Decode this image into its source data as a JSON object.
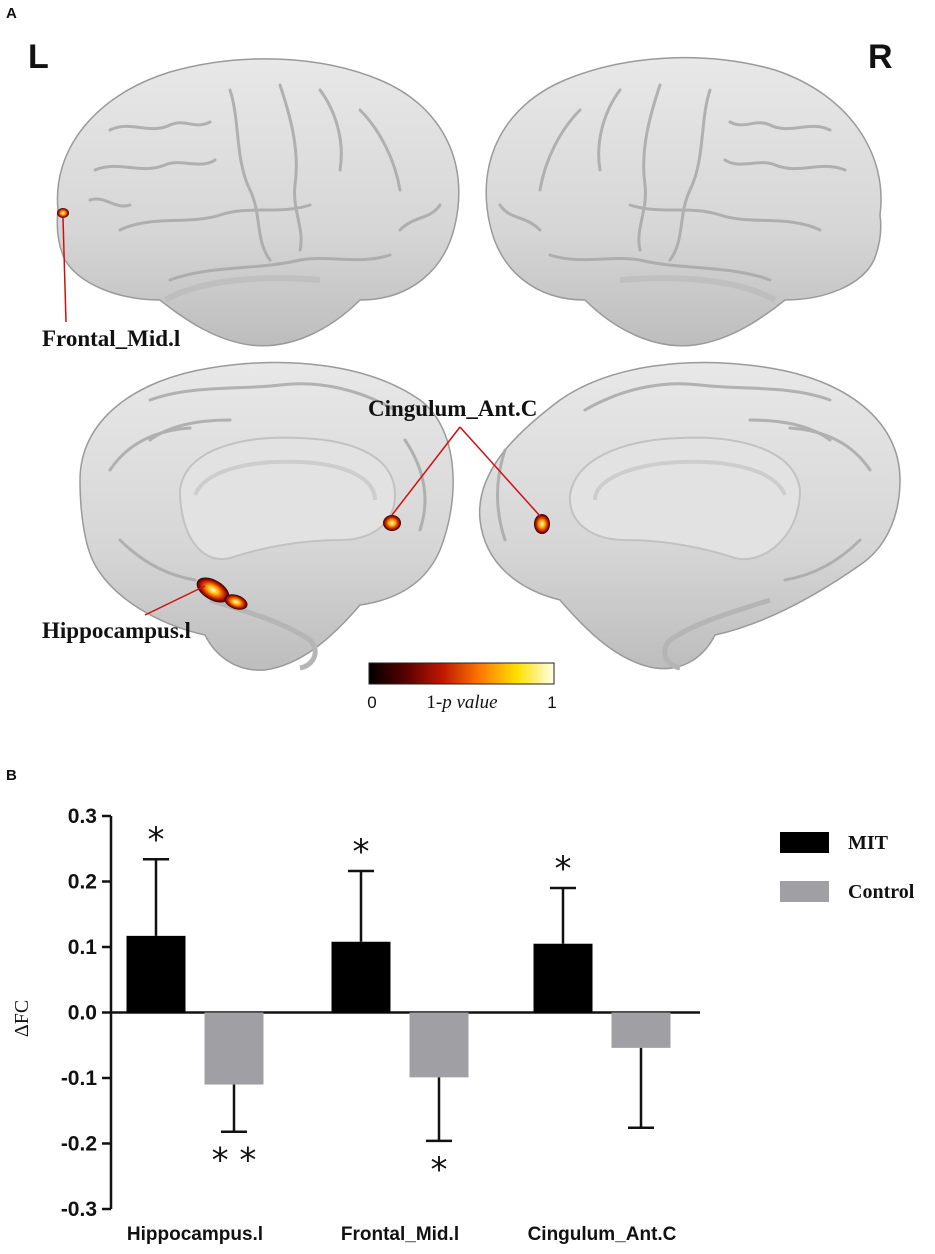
{
  "panel_a": {
    "letter": "A",
    "left_label": "L",
    "right_label": "R",
    "region_labels": {
      "frontal": "Frontal_Mid.l",
      "cingulum": "Cingulum_Ant.C",
      "hippocampus": "Hippocampus.l"
    },
    "colorbar": {
      "min_label": "0",
      "max_label": "1",
      "title_prefix": "1-",
      "title_italic": "p value",
      "stops": [
        "#000000",
        "#5a0000",
        "#c01800",
        "#ff7800",
        "#ffe000",
        "#ffffe8"
      ]
    }
  },
  "panel_b": {
    "letter": "B"
  },
  "chart_data": {
    "type": "bar",
    "ylabel": "ΔFC",
    "ylim": [
      -0.3,
      0.3
    ],
    "yticks": [
      0.3,
      0.2,
      0.1,
      0.0,
      -0.1,
      -0.2,
      -0.3
    ],
    "ytick_labels": [
      "0.3",
      "0.2",
      "0.1",
      "0.0",
      "-0.1",
      "-0.2",
      "-0.3"
    ],
    "categories": [
      "Hippocampus.l",
      "Frontal_Mid.l",
      "Cingulum_Ant.C"
    ],
    "legend_position": "top-right",
    "series": [
      {
        "name": "MIT",
        "color": "#000000",
        "values": [
          0.117,
          0.108,
          0.105
        ],
        "error": [
          0.117,
          0.108,
          0.085
        ],
        "significance": [
          "*",
          "*",
          "*"
        ]
      },
      {
        "name": "Control",
        "color": "#a0a0a4",
        "values": [
          -0.11,
          -0.099,
          -0.054
        ],
        "error": [
          0.072,
          0.097,
          0.122
        ],
        "significance": [
          "**",
          "*",
          ""
        ]
      }
    ]
  }
}
